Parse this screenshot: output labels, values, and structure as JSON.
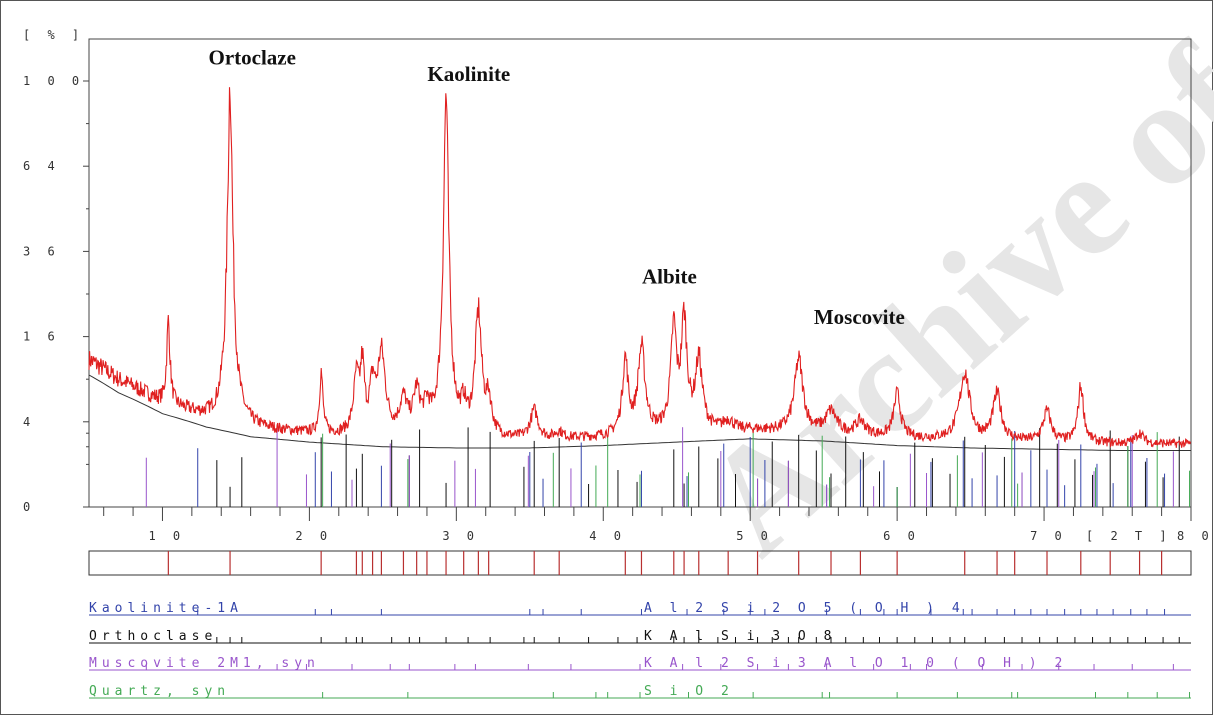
{
  "chart_data": {
    "type": "line",
    "y_unit": "[ % ]",
    "x_unit": "[ 2 T ]",
    "y_scale": "sqrt",
    "xlim": [
      5,
      80
    ],
    "ylim": [
      0,
      100
    ],
    "xticks": [
      10,
      20,
      30,
      40,
      50,
      60,
      70,
      80
    ],
    "yticks": [
      0,
      4,
      16,
      36,
      64,
      100
    ],
    "xtick_labels": [
      "1 0",
      "2 0",
      "3 0",
      "4 0",
      "5 0",
      "6 0",
      "7 0",
      "8 0"
    ],
    "ytick_labels": [
      "0",
      "4",
      "1 6",
      "3 6",
      "6 4",
      "1 0 0"
    ],
    "background": [
      [
        5,
        12
      ],
      [
        7,
        9
      ],
      [
        10,
        6
      ],
      [
        13,
        4.4
      ],
      [
        16,
        3.4
      ],
      [
        20,
        2.9
      ],
      [
        25,
        2.5
      ],
      [
        30,
        2.4
      ],
      [
        35,
        2.4
      ],
      [
        40,
        2.6
      ],
      [
        45,
        2.9
      ],
      [
        50,
        3.2
      ],
      [
        55,
        3.0
      ],
      [
        60,
        2.6
      ],
      [
        65,
        2.4
      ],
      [
        70,
        2.3
      ],
      [
        75,
        2.2
      ],
      [
        80,
        2.2
      ]
    ],
    "peaks": [
      {
        "x": 10.4,
        "y": 19,
        "w": 0.12
      },
      {
        "x": 14.6,
        "y": 100,
        "w": 0.16
      },
      {
        "x": 20.8,
        "y": 10,
        "w": 0.12
      },
      {
        "x": 23.2,
        "y": 9,
        "w": 0.2
      },
      {
        "x": 23.6,
        "y": 11,
        "w": 0.15
      },
      {
        "x": 24.3,
        "y": 8,
        "w": 0.2
      },
      {
        "x": 24.9,
        "y": 13,
        "w": 0.28
      },
      {
        "x": 26.4,
        "y": 6,
        "w": 0.3
      },
      {
        "x": 27.3,
        "y": 7,
        "w": 0.25
      },
      {
        "x": 28.0,
        "y": 5,
        "w": 0.25
      },
      {
        "x": 29.3,
        "y": 94,
        "w": 0.16
      },
      {
        "x": 30.5,
        "y": 5,
        "w": 0.2
      },
      {
        "x": 31.5,
        "y": 21,
        "w": 0.22
      },
      {
        "x": 32.2,
        "y": 6,
        "w": 0.2
      },
      {
        "x": 35.3,
        "y": 5,
        "w": 0.3
      },
      {
        "x": 37.0,
        "y": 3,
        "w": 0.3
      },
      {
        "x": 41.5,
        "y": 12,
        "w": 0.2
      },
      {
        "x": 42.6,
        "y": 14,
        "w": 0.25
      },
      {
        "x": 44.8,
        "y": 18,
        "w": 0.2
      },
      {
        "x": 45.5,
        "y": 20,
        "w": 0.2
      },
      {
        "x": 46.5,
        "y": 12,
        "w": 0.25
      },
      {
        "x": 48.5,
        "y": 4,
        "w": 0.4
      },
      {
        "x": 53.3,
        "y": 12,
        "w": 0.3
      },
      {
        "x": 55.5,
        "y": 5,
        "w": 0.4
      },
      {
        "x": 57.5,
        "y": 4,
        "w": 0.4
      },
      {
        "x": 60.0,
        "y": 7,
        "w": 0.25
      },
      {
        "x": 64.6,
        "y": 10,
        "w": 0.35
      },
      {
        "x": 66.8,
        "y": 7,
        "w": 0.3
      },
      {
        "x": 70.2,
        "y": 5,
        "w": 0.3
      },
      {
        "x": 72.5,
        "y": 8,
        "w": 0.2
      },
      {
        "x": 76.5,
        "y": 3,
        "w": 0.3
      }
    ],
    "annotations": [
      {
        "text": "Ortoclaze",
        "x": 16.4,
        "y": 108
      },
      {
        "text": "Kaolinite",
        "x": 31.3,
        "y": 100
      },
      {
        "text": "Albite",
        "x": 45.9,
        "y": 27.5
      },
      {
        "text": "Moscovite",
        "x": 57.6,
        "y": 18.5
      }
    ],
    "stick_positions": [
      10.4,
      14.6,
      20.8,
      23.2,
      23.6,
      24.3,
      24.9,
      26.4,
      27.3,
      28.0,
      29.3,
      30.5,
      31.5,
      32.2,
      35.3,
      37.0,
      41.5,
      42.6,
      44.8,
      45.5,
      46.5,
      48.5,
      50.5,
      53.3,
      55.5,
      57.5,
      60.0,
      64.6,
      66.8,
      68.0,
      70.2,
      72.5,
      74.5,
      76.5,
      78.0
    ],
    "phases": [
      {
        "name": "Kaolinite-1A",
        "formula": "A l 2 S i 2 O 5 ( O H ) 4",
        "color": "#3344aa",
        "sticks": [
          12.4,
          20.4,
          21.5,
          24.9,
          35.0,
          35.9,
          38.5,
          42.6,
          45.7,
          48.2,
          50.0,
          51.0,
          55.2,
          57.5,
          59.1,
          60.0,
          62.3,
          64.5,
          65.1,
          66.8,
          68.0,
          69.1,
          70.2,
          71.4,
          72.5,
          73.6,
          74.7,
          75.9,
          77.0,
          78.2
        ]
      },
      {
        "name": "Ortho­clase",
        "formula": "K A l S i 3 O 8",
        "color": "#111111",
        "sticks": [
          13.7,
          14.6,
          15.4,
          20.8,
          22.5,
          23.2,
          23.6,
          25.6,
          26.8,
          27.5,
          29.3,
          30.8,
          32.3,
          34.6,
          35.3,
          37.0,
          39.0,
          41.0,
          42.3,
          44.8,
          45.5,
          46.5,
          47.8,
          49.0,
          50.5,
          51.5,
          52.6,
          53.3,
          54.5,
          55.5,
          56.5,
          57.7,
          58.8,
          60.0,
          61.2,
          62.4,
          63.6,
          64.6,
          66.0,
          67.3,
          68.5,
          69.7,
          70.9,
          72.1,
          73.3,
          74.5,
          75.7,
          76.9,
          78.1,
          79.2
        ]
      },
      {
        "name": "Muscovite 2M1, syn",
        "formula": "K A l 2 S i 3 A l O 1 0 ( O H ) 2",
        "color": "#9955cc",
        "sticks": [
          8.9,
          17.8,
          19.8,
          22.9,
          25.5,
          26.8,
          29.9,
          31.3,
          34.9,
          37.8,
          42.5,
          45.4,
          48.0,
          50.5,
          52.6,
          55.2,
          58.4,
          60.9,
          62.0,
          65.8,
          68.5,
          71.0,
          73.4,
          76.0,
          78.8
        ]
      },
      {
        "name": "Quartz, syn",
        "formula": "S i O 2",
        "color": "#44aa55",
        "sticks": [
          20.9,
          26.7,
          36.6,
          39.5,
          40.3,
          42.5,
          45.8,
          50.2,
          54.9,
          55.4,
          60.0,
          64.1,
          67.8,
          68.2,
          73.5,
          75.7,
          77.7,
          79.9
        ]
      }
    ]
  },
  "display": {
    "y_axis_top_labels": [
      "1 0 0",
      "6 4",
      "3 6",
      "1 6",
      "4",
      "0"
    ],
    "phase_names_display": [
      "Kaolinite-1A",
      "Orthoclase",
      "Muscovite 2M1, syn",
      "Quartz, syn"
    ],
    "phase_formulas_display": [
      "A l 2 S i 2 O 5 ( O H ) 4",
      "K A l S i 3 O 8",
      "K A l 2 S i 3 A l O 1 0 ( O H ) 2",
      "S i O 2"
    ]
  },
  "colors": {
    "pattern_line": "#e02020",
    "pattern_line_dark": "#1a1acc",
    "background_curve": "#333333",
    "watermark": "#e6e6e6"
  }
}
